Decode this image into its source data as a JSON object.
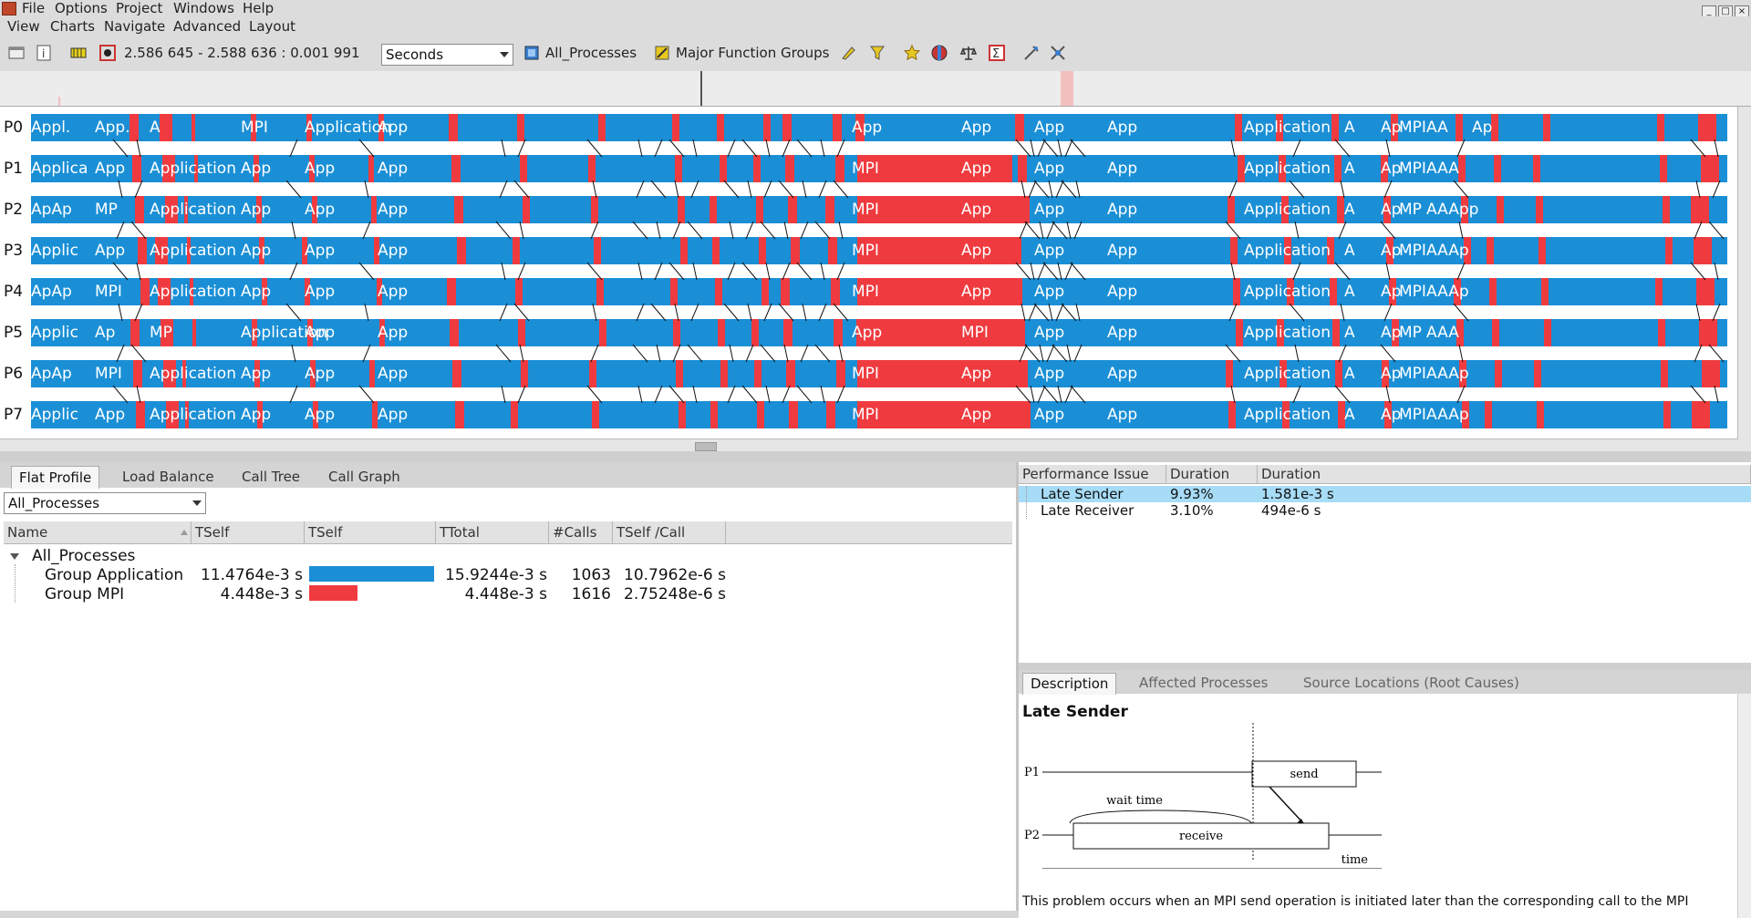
{
  "menubar_top": [
    "File",
    "Options",
    "Project",
    "Windows",
    "Help"
  ],
  "menubar_bottom": [
    "View",
    "Charts",
    "Navigate",
    "Advanced",
    "Layout"
  ],
  "toolbar": {
    "time_range": "2.586 645 - 2.588 636 : 0.001 991",
    "unit_select": "Seconds",
    "process_filter": "All_Processes",
    "function_groups": "Major Function Groups"
  },
  "timeline": {
    "processes": [
      "P0",
      "P1",
      "P2",
      "P3",
      "P4",
      "P5",
      "P6",
      "P7"
    ],
    "rows": [
      [
        "Appl.",
        "App.",
        "A",
        "MPI",
        "Application",
        "App",
        "App",
        "App",
        "App",
        "App",
        "Application",
        "A",
        "Ap",
        "MPI",
        "AA",
        "Ap"
      ],
      [
        "Applica",
        "App",
        "Application",
        "App",
        "App",
        "App",
        "MPI",
        "App",
        "App",
        "App",
        "Application",
        "A",
        "Ap",
        "MPI",
        "AAA"
      ],
      [
        "ApAp",
        "MP",
        "Application",
        "App",
        "App",
        "App",
        "MPI",
        "App",
        "App",
        "App",
        "Application",
        "A",
        "Ap",
        "MP",
        "AAApp"
      ],
      [
        "Applic",
        "App",
        "Application",
        "App",
        "App",
        "App",
        "MPI",
        "App",
        "App",
        "App",
        "Application",
        "A",
        "Ap",
        "MPI",
        "AAAp"
      ],
      [
        "ApAp",
        "MPI",
        "Application",
        "App",
        "App",
        "App",
        "MPI",
        "App",
        "App",
        "App",
        "Application",
        "A",
        "Ap",
        "MPI",
        "AAAp"
      ],
      [
        "Applic",
        "Ap",
        "MP",
        "Application",
        "App",
        "App",
        "App",
        "MPI",
        "App",
        "App",
        "Application",
        "A",
        "Ap",
        "MP",
        "AAA"
      ],
      [
        "ApAp",
        "MPI",
        "Application",
        "App",
        "App",
        "App",
        "MPI",
        "App",
        "App",
        "App",
        "Application",
        "A",
        "Ap",
        "MPI",
        "AAAp"
      ],
      [
        "Applic",
        "App",
        "Application",
        "App",
        "App",
        "App",
        "MPI",
        "App",
        "App",
        "App",
        "Application",
        "A",
        "Ap",
        "MPI",
        "AAAp"
      ]
    ],
    "colors": {
      "application": "#1a8fd6",
      "mpi": "#ef3b3f"
    }
  },
  "left_panel": {
    "tabs": [
      "Flat Profile",
      "Load Balance",
      "Call Tree",
      "Call Graph"
    ],
    "process_select": "All_Processes",
    "columns": [
      "Name",
      "TSelf",
      "TSelf",
      "TTotal",
      "#Calls",
      "TSelf /Call"
    ],
    "root": "All_Processes",
    "rows": [
      {
        "name": "Group Application",
        "tself": "11.4764e-3 s",
        "fill": 1.0,
        "ttotal": "15.9244e-3 s",
        "calls": "1063",
        "per_call": "10.7962e-6 s",
        "color": "#1a8fd6"
      },
      {
        "name": "Group MPI",
        "tself": "4.448e-3 s",
        "fill": 0.388,
        "ttotal": "4.448e-3 s",
        "calls": "1616",
        "per_call": "2.75248e-6 s",
        "color": "#ef3b3f"
      }
    ]
  },
  "perf_panel": {
    "columns": [
      "Performance Issue",
      "Duration (%)",
      "Duration"
    ],
    "rows": [
      {
        "issue": "Late Sender",
        "pct": "9.93%",
        "dur": "1.581e-3 s"
      },
      {
        "issue": "Late Receiver",
        "pct": "3.10%",
        "dur": "494e-6 s"
      }
    ]
  },
  "desc_panel": {
    "tabs": [
      "Description",
      "Affected Processes",
      "Source Locations (Root Causes)"
    ],
    "title": "Late Sender",
    "diagram": {
      "p1": "P1",
      "p2": "P2",
      "send": "send",
      "receive": "receive",
      "wait": "wait time",
      "time": "time"
    },
    "text": "This problem occurs when an MPI send operation is initiated later than the corresponding call to the MPI"
  }
}
